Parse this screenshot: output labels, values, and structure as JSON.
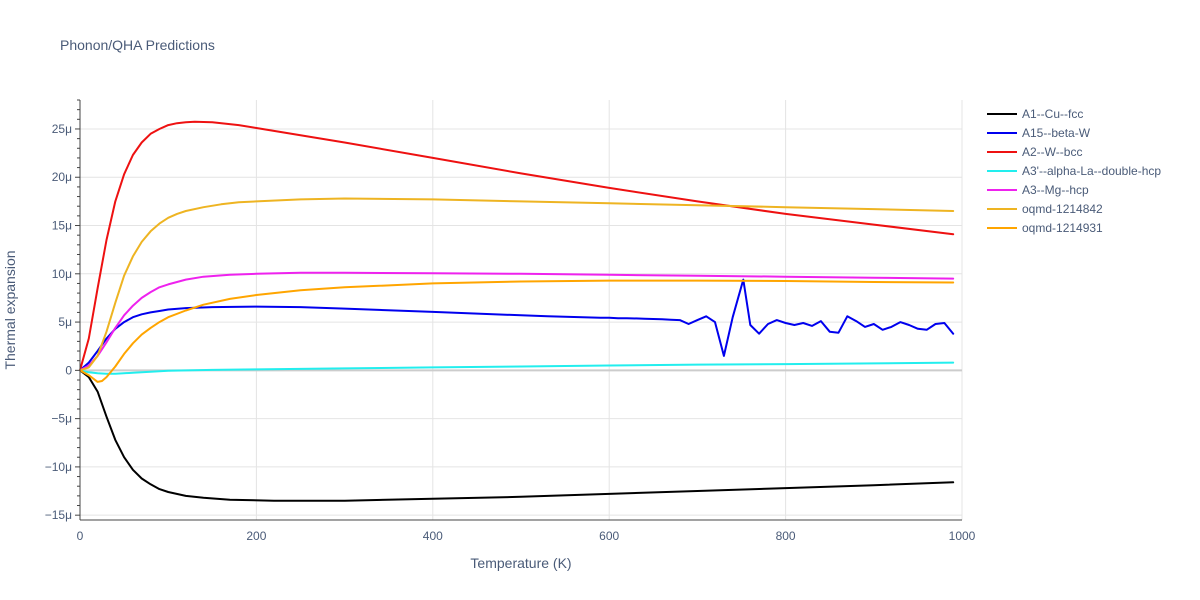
{
  "chart_data": {
    "type": "line",
    "title": "Phonon/QHA Predictions",
    "xlabel": "Temperature (K)",
    "ylabel": "Thermal expansion",
    "xlim": [
      0,
      1000
    ],
    "ylim": [
      -15.5,
      28
    ],
    "x_ticks": [
      0,
      200,
      400,
      600,
      800,
      1000
    ],
    "x_tick_labels": [
      "0",
      "200",
      "400",
      "600",
      "800",
      "1000"
    ],
    "y_ticks": [
      -15,
      -10,
      -5,
      0,
      5,
      10,
      15,
      20,
      25
    ],
    "y_tick_labels": [
      "−15μ",
      "−10μ",
      "−5μ",
      "0",
      "5μ",
      "10μ",
      "15μ",
      "20μ",
      "25μ"
    ],
    "y_unit": "μ",
    "grid": true,
    "legend_position": "top-right",
    "series": [
      {
        "name": "A1--Cu--fcc",
        "color": "#000000",
        "x": [
          0,
          10,
          20,
          30,
          40,
          50,
          60,
          70,
          80,
          90,
          100,
          120,
          140,
          170,
          220,
          300,
          400,
          500,
          600,
          700,
          800,
          900,
          990
        ],
        "y": [
          0,
          -0.7,
          -2.2,
          -4.8,
          -7.2,
          -9.0,
          -10.3,
          -11.2,
          -11.8,
          -12.3,
          -12.6,
          -13.0,
          -13.2,
          -13.4,
          -13.5,
          -13.5,
          -13.3,
          -13.1,
          -12.8,
          -12.5,
          -12.2,
          -11.9,
          -11.6
        ]
      },
      {
        "name": "A15--beta-W",
        "color": "#0000ee",
        "x": [
          0,
          10,
          20,
          30,
          40,
          50,
          60,
          70,
          80,
          90,
          100,
          120,
          150,
          200,
          250,
          300,
          400,
          500,
          530,
          550,
          570,
          590,
          600,
          610,
          620,
          640,
          660,
          670,
          680,
          690,
          700,
          710,
          720,
          730,
          740,
          752,
          760,
          770,
          780,
          790,
          800,
          810,
          820,
          830,
          840,
          850,
          860,
          870,
          880,
          890,
          900,
          910,
          920,
          930,
          940,
          950,
          960,
          970,
          980,
          990
        ],
        "y": [
          0,
          0.8,
          2.0,
          3.3,
          4.3,
          5.0,
          5.5,
          5.8,
          6.0,
          6.15,
          6.3,
          6.45,
          6.55,
          6.6,
          6.55,
          6.4,
          6.05,
          5.7,
          5.6,
          5.55,
          5.5,
          5.45,
          5.45,
          5.4,
          5.4,
          5.35,
          5.3,
          5.25,
          5.2,
          4.8,
          5.2,
          5.6,
          5.0,
          1.5,
          5.5,
          9.4,
          4.7,
          3.8,
          4.8,
          5.2,
          4.9,
          4.7,
          4.9,
          4.6,
          5.1,
          4.0,
          3.9,
          5.6,
          5.1,
          4.5,
          4.8,
          4.2,
          4.5,
          5.0,
          4.7,
          4.3,
          4.2,
          4.8,
          4.9,
          3.8
        ]
      },
      {
        "name": "A2--W--bcc",
        "color": "#ee1111",
        "x": [
          0,
          10,
          20,
          30,
          40,
          50,
          60,
          70,
          80,
          90,
          100,
          110,
          120,
          130,
          150,
          180,
          200,
          300,
          400,
          500,
          600,
          700,
          800,
          900,
          990
        ],
        "y": [
          0,
          3.3,
          8.5,
          13.5,
          17.5,
          20.3,
          22.3,
          23.6,
          24.5,
          25.0,
          25.4,
          25.6,
          25.7,
          25.75,
          25.7,
          25.4,
          25.1,
          23.6,
          22.0,
          20.4,
          18.9,
          17.5,
          16.2,
          15.1,
          14.1
        ]
      },
      {
        "name": "A3'--alpha-La--double-hcp",
        "color": "#22eeee",
        "x": [
          0,
          10,
          20,
          30,
          40,
          60,
          80,
          100,
          150,
          200,
          300,
          400,
          500,
          600,
          700,
          800,
          900,
          990
        ],
        "y": [
          0,
          -0.2,
          -0.3,
          -0.35,
          -0.35,
          -0.25,
          -0.15,
          -0.05,
          0.05,
          0.1,
          0.2,
          0.3,
          0.4,
          0.5,
          0.6,
          0.65,
          0.72,
          0.8
        ]
      },
      {
        "name": "A3--Mg--hcp",
        "color": "#ee22ee",
        "x": [
          0,
          10,
          20,
          30,
          40,
          50,
          60,
          70,
          80,
          90,
          100,
          120,
          140,
          170,
          200,
          250,
          300,
          400,
          500,
          600,
          700,
          800,
          900,
          990
        ],
        "y": [
          0,
          0.5,
          1.5,
          2.9,
          4.4,
          5.7,
          6.7,
          7.5,
          8.1,
          8.6,
          8.9,
          9.4,
          9.7,
          9.9,
          10.0,
          10.1,
          10.1,
          10.05,
          10.0,
          9.9,
          9.8,
          9.7,
          9.6,
          9.5
        ]
      },
      {
        "name": "oqmd-1214842",
        "color": "#eeb422",
        "x": [
          0,
          10,
          20,
          30,
          40,
          50,
          60,
          70,
          80,
          90,
          100,
          110,
          120,
          140,
          160,
          180,
          200,
          250,
          300,
          400,
          500,
          600,
          700,
          800,
          900,
          990
        ],
        "y": [
          0,
          0.3,
          1.5,
          4.0,
          7.0,
          9.8,
          11.8,
          13.3,
          14.4,
          15.2,
          15.8,
          16.2,
          16.5,
          16.9,
          17.2,
          17.4,
          17.5,
          17.7,
          17.8,
          17.7,
          17.5,
          17.3,
          17.1,
          16.9,
          16.7,
          16.5
        ]
      },
      {
        "name": "oqmd-1214931",
        "color": "#ffa500",
        "x": [
          0,
          10,
          20,
          25,
          30,
          40,
          50,
          60,
          70,
          80,
          90,
          100,
          120,
          140,
          170,
          200,
          250,
          300,
          400,
          500,
          600,
          700,
          800,
          900,
          990
        ],
        "y": [
          0,
          -0.5,
          -1.2,
          -1.1,
          -0.7,
          0.4,
          1.7,
          2.8,
          3.7,
          4.4,
          5.0,
          5.5,
          6.2,
          6.8,
          7.4,
          7.8,
          8.3,
          8.6,
          9.0,
          9.2,
          9.3,
          9.3,
          9.25,
          9.15,
          9.1
        ]
      }
    ]
  }
}
